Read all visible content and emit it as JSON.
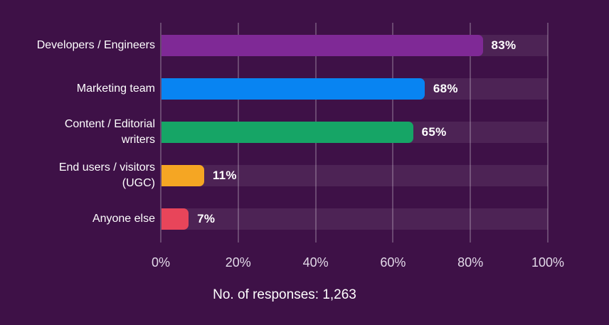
{
  "colors": {
    "background": "#3E1147",
    "track": "rgba(255,255,255,0.08)",
    "gridline": "rgba(255,255,255,0.23)",
    "label_text": "#FFFFFF",
    "tick_text": "#E2D9E8"
  },
  "chart_data": {
    "type": "bar",
    "orientation": "horizontal",
    "title": "",
    "xlabel": "",
    "ylabel": "",
    "xlim": [
      0,
      100
    ],
    "x_tick_labels": [
      "0%",
      "20%",
      "40%",
      "60%",
      "80%",
      "100%"
    ],
    "grid": "vertical gridlines every 20%",
    "legend": "none",
    "caption": "No. of responses: 1,263",
    "categories": [
      "Developers / Engineers",
      "Marketing team",
      "Content / Editorial writers",
      "End users / visitors (UGC)",
      "Anyone else"
    ],
    "values": [
      83,
      68,
      65,
      11,
      7
    ],
    "rows": [
      {
        "label": "Developers / Engineers",
        "value": 83,
        "value_label": "83%",
        "color": "#7F2996"
      },
      {
        "label": "Marketing team",
        "value": 68,
        "value_label": "68%",
        "color": "#0884F2"
      },
      {
        "label": "Content / Editorial\nwriters",
        "value": 65,
        "value_label": "65%",
        "color": "#16A566"
      },
      {
        "label": "End users / visitors\n(UGC)",
        "value": 11,
        "value_label": "11%",
        "color": "#F5A623"
      },
      {
        "label": "Anyone else",
        "value": 7,
        "value_label": "7%",
        "color": "#E8455A"
      }
    ]
  }
}
